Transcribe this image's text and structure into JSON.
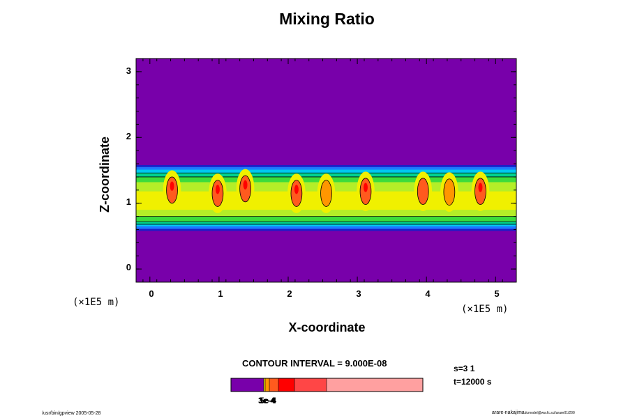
{
  "chart_data": {
    "type": "heatmap",
    "title": "Mixing Ratio",
    "xlabel": "X-coordinate",
    "ylabel": "Z-coordinate",
    "x_unit_left": "(×1E5 m)",
    "x_unit_right": "(×1E5 m)",
    "xlim": [
      -0.2,
      5.3
    ],
    "ylim": [
      -0.2,
      3.2
    ],
    "xticks": [
      "0",
      "1",
      "2",
      "3",
      "4",
      "5"
    ],
    "yticks": [
      "0",
      "1",
      "2",
      "3"
    ],
    "layer_z_bottom": 0.58,
    "layer_z_top": 1.58,
    "contour_interval_text": "CONTOUR INTERVAL = 9.000E-08",
    "colorbar_tick_text": "3e-4",
    "colorbar_tick_overlap": "5e-4",
    "colorbar_tick_extra": "1e-4",
    "colors": {
      "background": "#7800aa",
      "dark_blue": "#1a1ec8",
      "blue": "#1e78ff",
      "cyan": "#00c8f0",
      "sea_green": "#00d290",
      "green": "#3cdc3c",
      "yellow_green": "#b4ee28",
      "yellow": "#f0f000",
      "orange": "#ff9600",
      "orange_red": "#ff5a1e",
      "red": "#ff0000",
      "salmon": "#ff4646",
      "pink": "#ffa0a0"
    },
    "cells": [
      {
        "x": 0.32,
        "z": 1.2,
        "peak": "orange_red",
        "core": "red"
      },
      {
        "x": 0.98,
        "z": 1.15,
        "peak": "orange_red",
        "core": "red"
      },
      {
        "x": 1.38,
        "z": 1.22,
        "peak": "orange_red",
        "core": "red"
      },
      {
        "x": 2.12,
        "z": 1.15,
        "peak": "orange_red",
        "core": "red"
      },
      {
        "x": 2.55,
        "z": 1.15,
        "peak": "orange",
        "core": ""
      },
      {
        "x": 3.12,
        "z": 1.18,
        "peak": "orange_red",
        "core": "red"
      },
      {
        "x": 3.95,
        "z": 1.18,
        "peak": "orange_red",
        "core": "orange_red"
      },
      {
        "x": 4.33,
        "z": 1.17,
        "peak": "orange",
        "core": ""
      },
      {
        "x": 4.78,
        "z": 1.18,
        "peak": "orange_red",
        "core": "red"
      }
    ]
  },
  "info": {
    "step": "s=3 1",
    "time": "t=12000 s"
  },
  "footer": {
    "left": "/usr/bin/gpview 2005-05-28",
    "right_main": "arare-nakajima",
    "right_small": "dcmodel@ww.fc.sci/arare01/200"
  }
}
